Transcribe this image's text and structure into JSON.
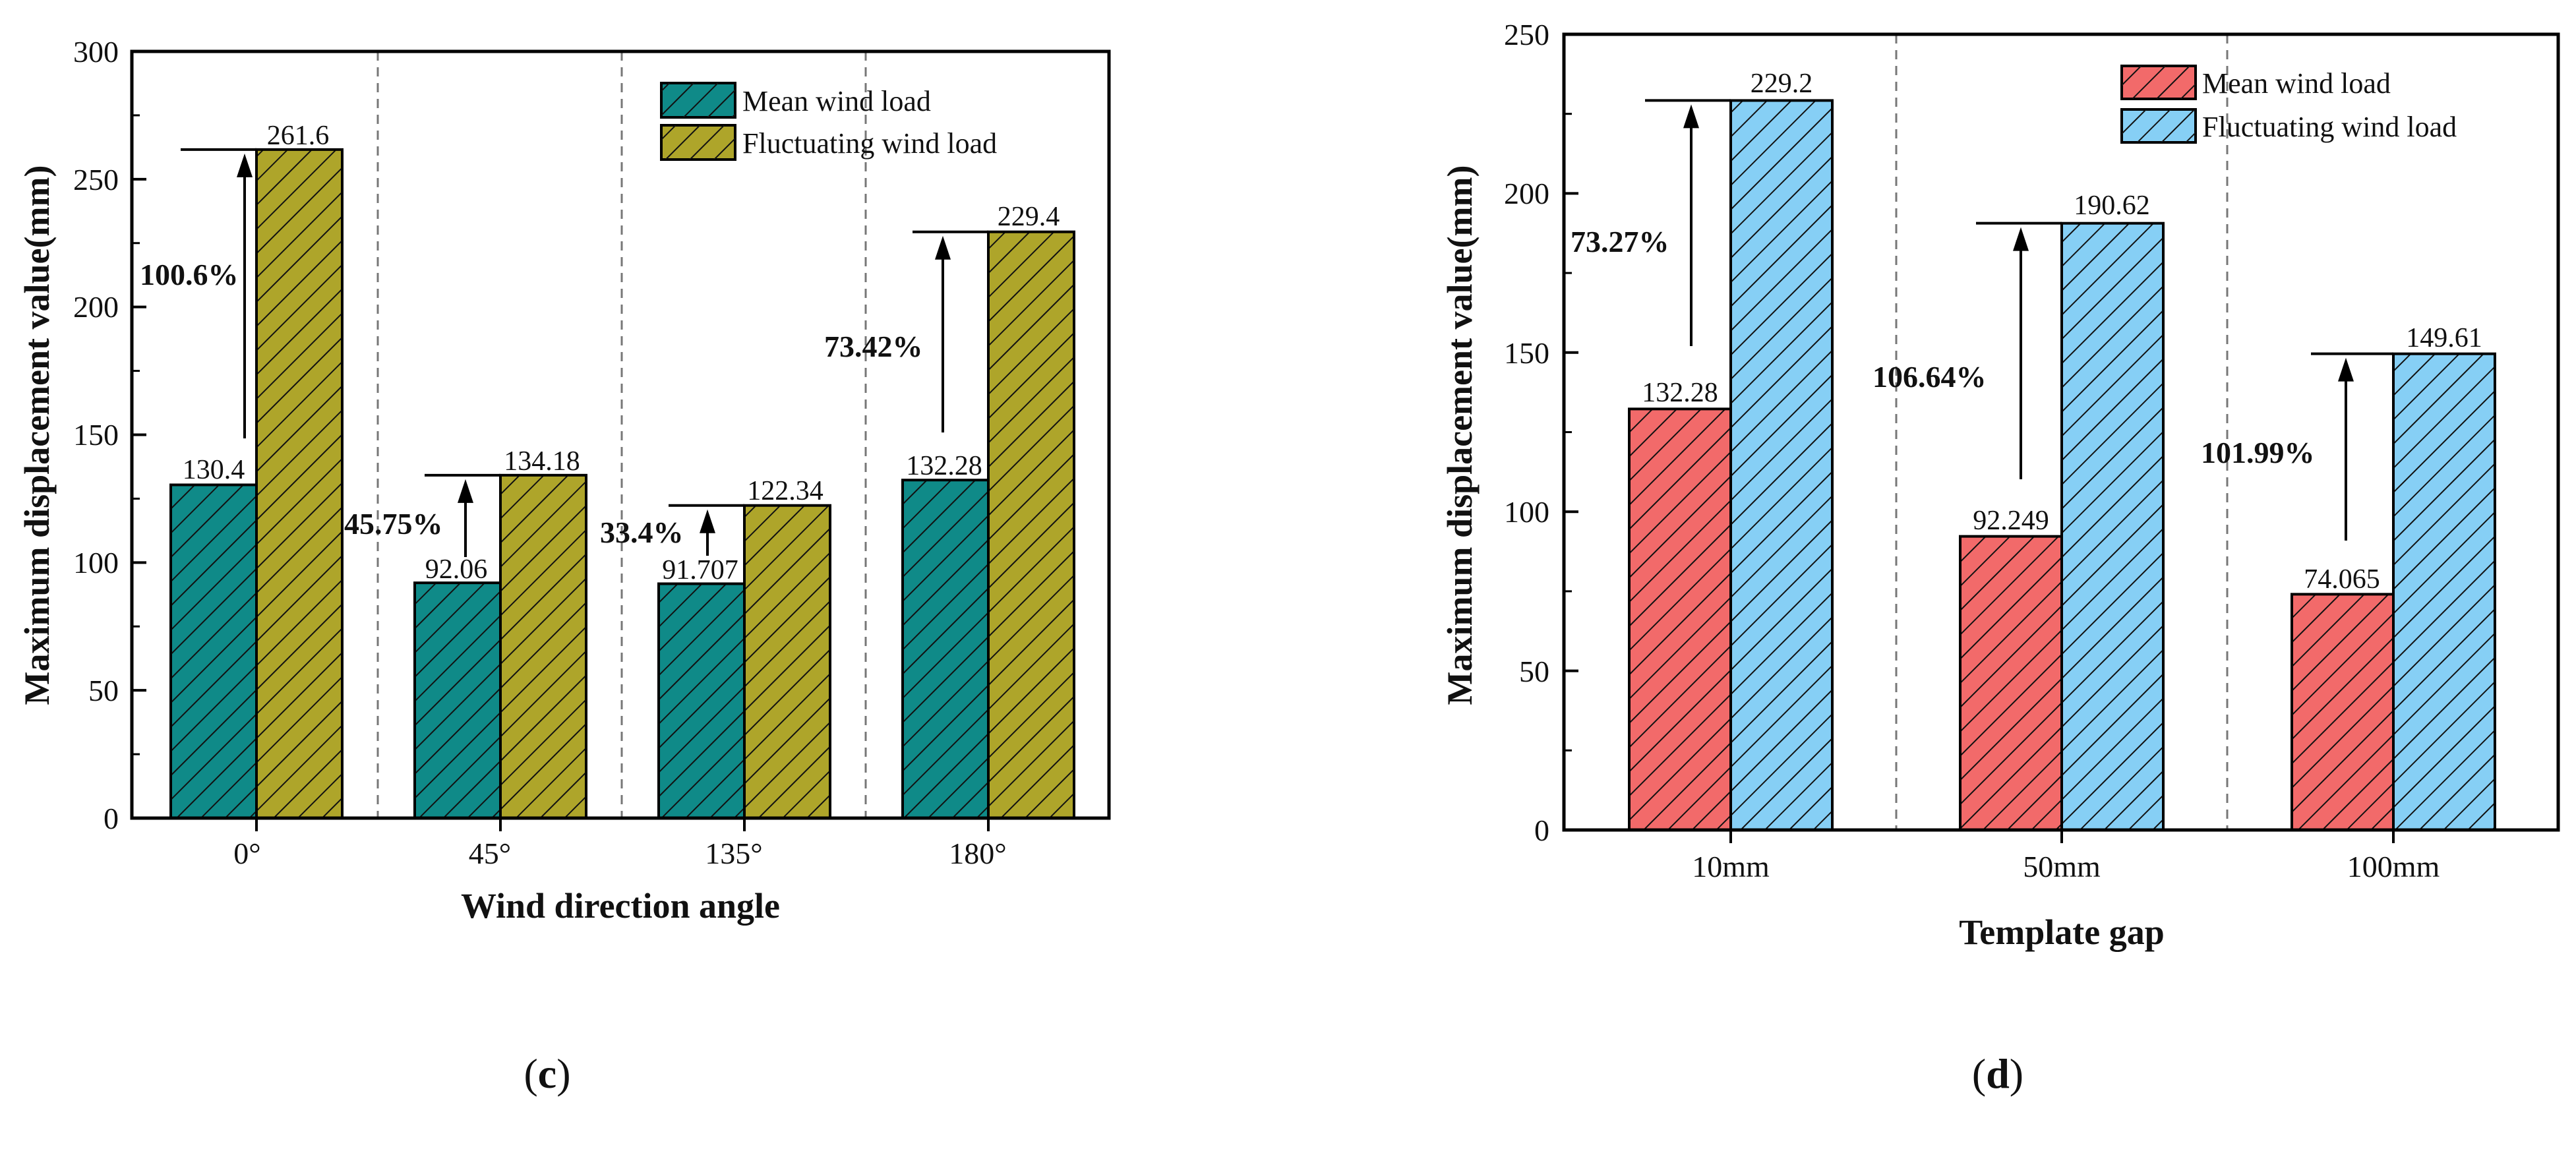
{
  "colors": {
    "teal": "#0F8A88",
    "olive": "#AEA52A",
    "red": "#F26A6A",
    "blue": "#86CFF5",
    "axis": "#000000",
    "divider": "#777777"
  },
  "chart_data": [
    {
      "type": "bar",
      "panel_label": "(c)",
      "panel_letter": "c",
      "xlabel": "Wind direction angle",
      "ylabel": "Maximum displacement value(mm)",
      "ylim": [
        0,
        300
      ],
      "yticks": [
        "0",
        "50",
        "100",
        "150",
        "200",
        "250",
        "300"
      ],
      "categories": [
        "0°",
        "45°",
        "135°",
        "180°"
      ],
      "series": [
        {
          "name": "Mean wind load",
          "color": "#0F8A88",
          "values": [
            130.4,
            92.06,
            91.707,
            132.28
          ],
          "labels": [
            "130.4",
            "92.06",
            "91.707",
            "132.28"
          ]
        },
        {
          "name": "Fluctuating wind load",
          "color": "#AEA52A",
          "values": [
            261.6,
            134.18,
            122.34,
            229.4
          ],
          "labels": [
            "261.6",
            "134.18",
            "122.34",
            "229.4"
          ]
        }
      ],
      "annotations": [
        "100.6%",
        "45.75%",
        "33.4%",
        "73.42%"
      ],
      "legend_position": "top-right",
      "hatch": "diagonal",
      "grid": false
    },
    {
      "type": "bar",
      "panel_label": "(d)",
      "panel_letter": "d",
      "xlabel": "Template gap",
      "ylabel": "Maximum displacement value(mm)",
      "ylim": [
        0,
        250
      ],
      "yticks": [
        "0",
        "50",
        "100",
        "150",
        "200",
        "250"
      ],
      "categories": [
        "10mm",
        "50mm",
        "100mm"
      ],
      "series": [
        {
          "name": "Mean wind load",
          "color": "#F26A6A",
          "values": [
            132.28,
            92.249,
            74.065
          ],
          "labels": [
            "132.28",
            "92.249",
            "74.065"
          ]
        },
        {
          "name": "Fluctuating wind load",
          "color": "#86CFF5",
          "values": [
            229.2,
            190.62,
            149.61
          ],
          "labels": [
            "229.2",
            "190.62",
            "149.61"
          ]
        }
      ],
      "annotations": [
        "73.27%",
        "106.64%",
        "101.99%"
      ],
      "legend_position": "top-right",
      "hatch": "diagonal",
      "grid": false
    }
  ]
}
